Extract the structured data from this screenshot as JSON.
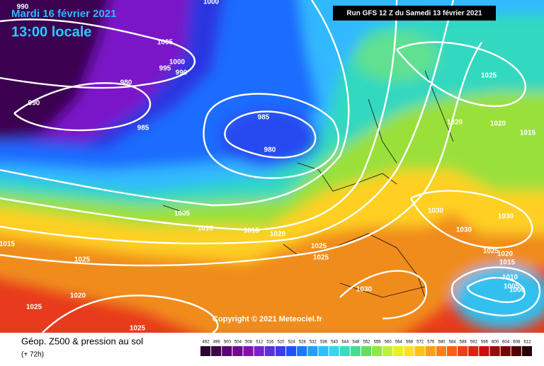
{
  "header": {
    "date": "Mardi 16 février 2021",
    "time": "13:00 locale",
    "run": "Run GFS 12 Z du Samedi 13 février 2021",
    "copyright": "Copyright © 2021 Meteociel.fr"
  },
  "footer": {
    "title": "Géop. Z500 & pression au sol",
    "lead": "(+ 72h)"
  },
  "legend": {
    "values": [
      492,
      496,
      500,
      504,
      508,
      512,
      516,
      520,
      524,
      528,
      532,
      536,
      540,
      544,
      548,
      552,
      556,
      560,
      564,
      568,
      572,
      576,
      580,
      584,
      588,
      592,
      596,
      600,
      604,
      608,
      612
    ],
    "colors": [
      "#2a0030",
      "#40004c",
      "#5a0070",
      "#700890",
      "#8410b0",
      "#7a20d0",
      "#5a30e0",
      "#3a3af0",
      "#2050ff",
      "#1878ff",
      "#20a0ff",
      "#28c0ff",
      "#30d8f0",
      "#30e0c0",
      "#40e090",
      "#60e060",
      "#90e840",
      "#c0f030",
      "#e8f020",
      "#ffe020",
      "#ffc018",
      "#ffa010",
      "#ff8010",
      "#ff6010",
      "#f04010",
      "#e02010",
      "#c81010",
      "#a00808",
      "#780404",
      "#500202",
      "#280000"
    ]
  },
  "isobar_labels": [
    990,
    1000,
    1005,
    1000,
    995,
    990,
    980,
    990,
    985,
    985,
    980,
    1005,
    1010,
    1015,
    1020,
    1025,
    1025,
    1015,
    1025,
    1020,
    1025,
    1025,
    1030,
    1025,
    1020,
    1020,
    1015,
    1030,
    1030,
    1030,
    1025,
    1020,
    1015,
    1010,
    1005,
    1000
  ]
}
